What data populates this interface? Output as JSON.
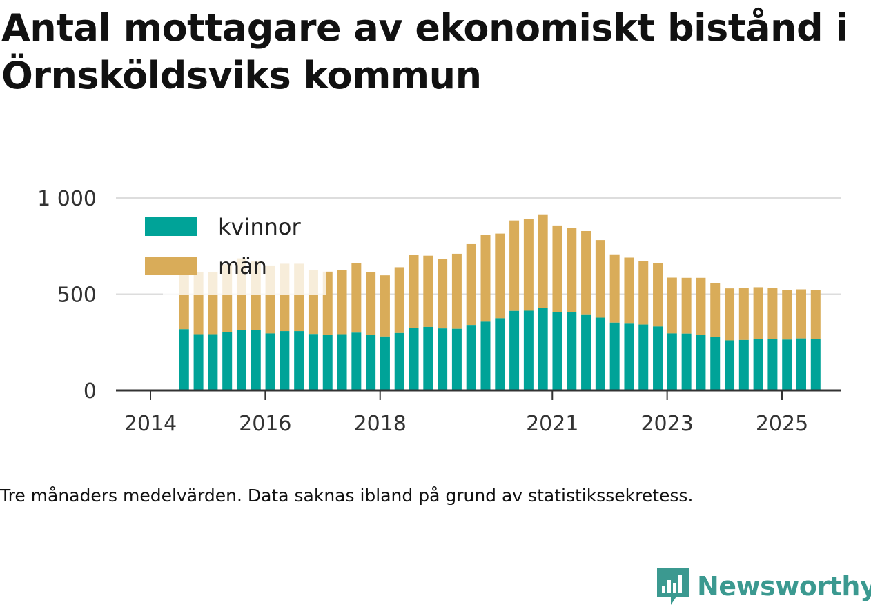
{
  "title": "Antal mottagare av ekonomiskt bistånd i Örnsköldsviks kommun",
  "caption": "Tre månaders medelvärden. Data saknas ibland på grund av statistikssekretess.",
  "brand": {
    "name": "Newsworthy",
    "color": "#3b9990"
  },
  "chart_data": {
    "type": "bar",
    "stacked": true,
    "ylim": [
      0,
      1000
    ],
    "yticks": [
      0,
      500,
      1000
    ],
    "ytick_labels": [
      "0",
      "500",
      "1 000"
    ],
    "xticks": [
      "2014",
      "2016",
      "2018",
      "2021",
      "2023",
      "2025"
    ],
    "grid": true,
    "legend_position": "top-left",
    "colors": {
      "kvinnor": "#00a398",
      "män": "#d9ac59"
    },
    "categories": [
      "2014-04",
      "2014-07",
      "2014-10",
      "2015-01",
      "2015-04",
      "2015-07",
      "2015-10",
      "2016-01",
      "2016-04",
      "2016-07",
      "2016-10",
      "2017-01",
      "2017-04",
      "2017-07",
      "2017-10",
      "2018-01",
      "2018-04",
      "2018-07",
      "2018-10",
      "2019-01",
      "2019-04",
      "2019-07",
      "2019-10",
      "2020-01",
      "2020-04",
      "2020-07",
      "2020-10",
      "2021-01",
      "2021-04",
      "2021-07",
      "2021-10",
      "2022-01",
      "2022-04",
      "2022-07",
      "2022-10",
      "2023-01",
      "2023-04",
      "2023-07",
      "2023-10",
      "2024-01",
      "2024-04",
      "2024-07",
      "2024-10",
      "2025-01",
      "2025-04"
    ],
    "series": [
      {
        "name": "kvinnor",
        "values": [
          318,
          292,
          292,
          302,
          313,
          313,
          296,
          308,
          308,
          293,
          290,
          292,
          300,
          288,
          280,
          298,
          325,
          330,
          322,
          320,
          340,
          357,
          375,
          413,
          414,
          428,
          407,
          405,
          395,
          378,
          352,
          350,
          342,
          332,
          296,
          295,
          289,
          276,
          260,
          262,
          266,
          266,
          264,
          270,
          268
        ]
      },
      {
        "name": "män",
        "values": [
          297,
          322,
          322,
          353,
          373,
          357,
          353,
          350,
          350,
          332,
          327,
          333,
          360,
          327,
          318,
          342,
          378,
          370,
          362,
          390,
          420,
          450,
          440,
          470,
          478,
          487,
          450,
          440,
          433,
          403,
          355,
          340,
          330,
          330,
          290,
          290,
          296,
          280,
          270,
          272,
          270,
          266,
          256,
          255,
          255
        ]
      }
    ],
    "hidden_legend_overlap": true
  }
}
